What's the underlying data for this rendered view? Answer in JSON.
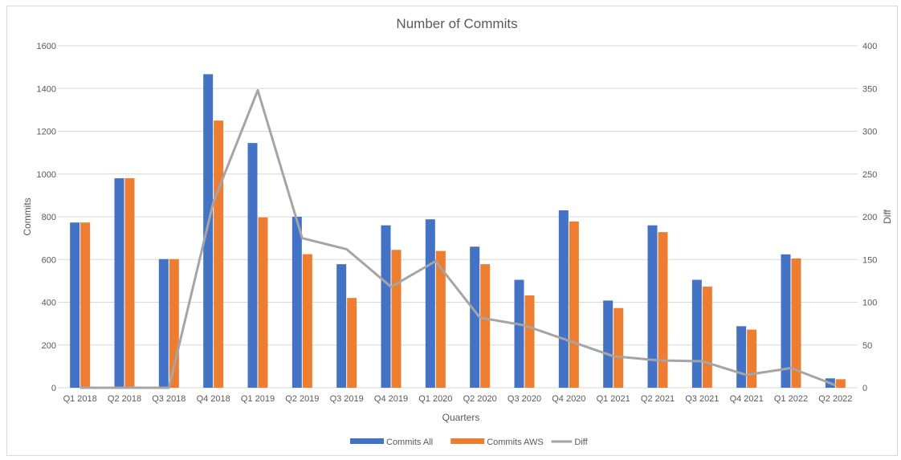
{
  "chart_data": {
    "type": "bar",
    "title": "Number of Commits",
    "xlabel": "Quarters",
    "ylabel": "Commits",
    "y2label": "Diff",
    "ylim": [
      0,
      1600
    ],
    "y2lim": [
      0,
      400
    ],
    "y_ticks": [
      "0",
      "200",
      "400",
      "600",
      "800",
      "1000",
      "1200",
      "1400",
      "1600"
    ],
    "y2_ticks": [
      "0",
      "50",
      "100",
      "150",
      "200",
      "250",
      "300",
      "350",
      "400"
    ],
    "grid": true,
    "legend_position": "bottom",
    "categories": [
      "Q1 2018",
      "Q2 2018",
      "Q3 2018",
      "Q4 2018",
      "Q1 2019",
      "Q2 2019",
      "Q3 2019",
      "Q4 2019",
      "Q1 2020",
      "Q2 2020",
      "Q3 2020",
      "Q4 2020",
      "Q1 2021",
      "Q2 2021",
      "Q3 2021",
      "Q4 2021",
      "Q1 2022",
      "Q2 2022"
    ],
    "series": [
      {
        "name": "Commits All",
        "type": "bar",
        "axis": "left",
        "color": "#4472C4",
        "values": [
          773,
          980,
          602,
          1467,
          1145,
          800,
          578,
          760,
          788,
          660,
          505,
          830,
          408,
          760,
          505,
          288,
          624,
          44
        ]
      },
      {
        "name": "Commits AWS",
        "type": "bar",
        "axis": "left",
        "color": "#ED7D31",
        "values": [
          773,
          980,
          602,
          1250,
          797,
          625,
          420,
          645,
          640,
          578,
          432,
          778,
          373,
          728,
          473,
          272,
          605,
          40
        ]
      },
      {
        "name": "Diff",
        "type": "line",
        "axis": "right",
        "color": "#A5A5A5",
        "values": [
          0,
          0,
          0,
          217,
          348,
          175,
          162,
          118,
          148,
          82,
          73,
          55,
          37,
          32,
          31,
          15,
          23,
          3
        ]
      }
    ]
  }
}
